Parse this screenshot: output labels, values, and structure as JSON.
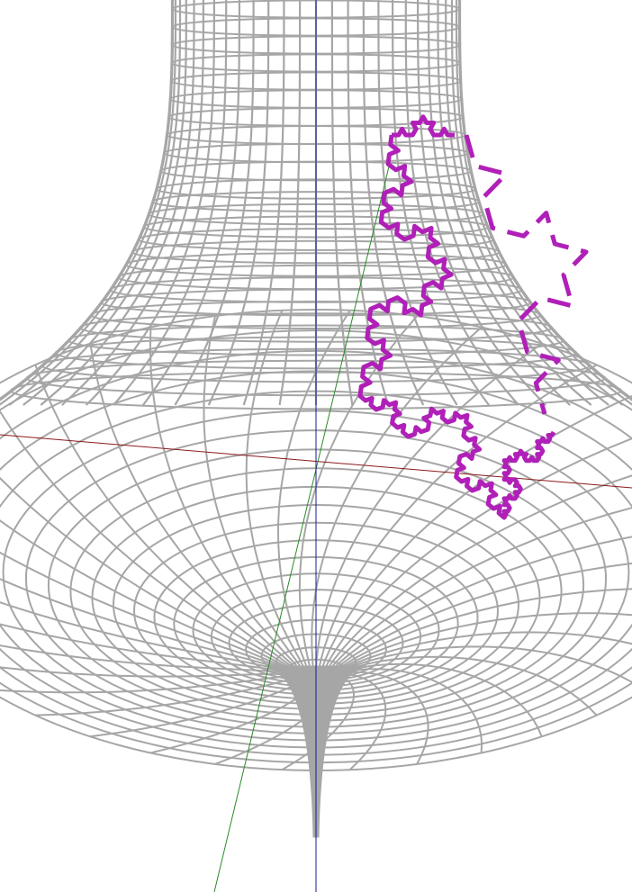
{
  "scene": {
    "description_visible": false,
    "surface": {
      "kind": "pseudosphere-wireframe",
      "color": "#a6a6a6"
    },
    "axes": {
      "x_color": "#8b1a1a",
      "y_color": "#2a8a2a",
      "z_color": "#1a1a9a"
    },
    "curve": {
      "kind": "koch-snowflake-on-surface",
      "color": "#b020b8",
      "iterations": 3
    }
  }
}
